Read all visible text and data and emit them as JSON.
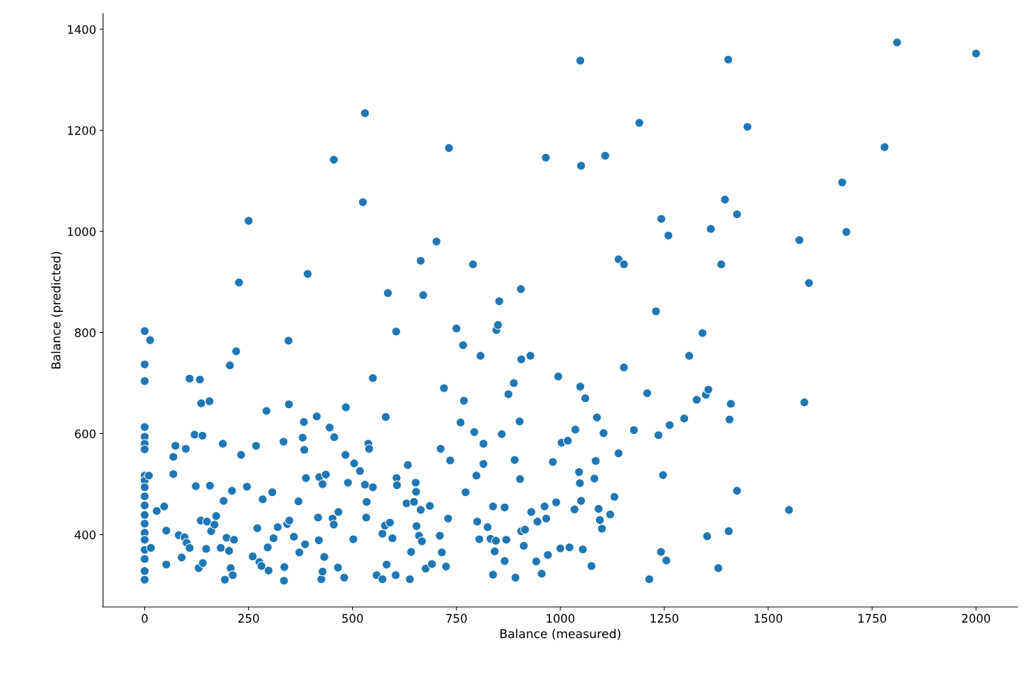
{
  "chart_data": {
    "type": "scatter",
    "xlabel": "Balance (measured)",
    "ylabel": "Balance (predicted)",
    "xlim": [
      -100,
      2100
    ],
    "ylim": [
      257,
      1431
    ],
    "xticks": [
      0,
      250,
      500,
      750,
      1000,
      1250,
      1500,
      1750,
      2000
    ],
    "yticks": [
      400,
      600,
      800,
      1000,
      1200,
      1400
    ],
    "grid": false,
    "legend": false,
    "marker": "circle",
    "series": [
      {
        "color": "#1f77b4",
        "x": [
          0,
          0,
          0,
          0,
          0,
          0,
          0,
          0,
          0,
          0,
          0,
          0,
          0,
          0,
          0,
          0,
          0,
          0,
          0,
          0,
          13,
          10,
          15,
          29,
          47,
          52,
          52,
          69,
          69,
          74,
          82,
          89,
          96,
          99,
          101,
          108,
          108,
          120,
          123,
          130,
          133,
          136,
          139,
          135,
          140,
          148,
          150,
          156,
          157,
          160,
          168,
          172,
          183,
          188,
          190,
          193,
          197,
          203,
          205,
          207,
          210,
          212,
          215,
          220,
          227,
          232,
          246,
          250,
          260,
          268,
          271,
          276,
          281,
          284,
          293,
          296,
          298,
          307,
          310,
          320,
          334,
          335,
          336,
          343,
          346,
          347,
          348,
          359,
          370,
          372,
          380,
          383,
          384,
          386,
          388,
          392,
          414,
          417,
          419,
          420,
          425,
          428,
          428,
          432,
          436,
          445,
          452,
          455,
          455,
          456,
          465,
          466,
          480,
          483,
          484,
          489,
          502,
          504,
          518,
          525,
          530,
          530,
          533,
          534,
          538,
          540,
          549,
          549,
          558,
          572,
          572,
          578,
          580,
          582,
          585,
          590,
          596,
          604,
          605,
          606,
          607,
          630,
          633,
          638,
          641,
          648,
          652,
          653,
          654,
          660,
          664,
          664,
          667,
          670,
          676,
          686,
          691,
          702,
          712,
          710,
          715,
          720,
          725,
          730,
          732,
          735,
          750,
          760,
          766,
          768,
          772,
          790,
          793,
          798,
          800,
          805,
          808,
          815,
          815,
          825,
          832,
          838,
          838,
          842,
          845,
          846,
          850,
          853,
          859,
          866,
          866,
          870,
          875,
          888,
          890,
          892,
          902,
          903,
          905,
          906,
          906,
          912,
          915,
          928,
          930,
          942,
          945,
          955,
          962,
          965,
          966,
          970,
          982,
          990,
          995,
          1000,
          1003,
          1018,
          1022,
          1034,
          1036,
          1045,
          1048,
          1048,
          1050,
          1047,
          1050,
          1054,
          1060,
          1075,
          1082,
          1085,
          1088,
          1092,
          1095,
          1100,
          1104,
          1108,
          1120,
          1130,
          1140,
          1140,
          1153,
          1153,
          1177,
          1190,
          1209,
          1214,
          1230,
          1236,
          1242,
          1243,
          1247,
          1255,
          1260,
          1263,
          1298,
          1310,
          1328,
          1342,
          1350,
          1356,
          1353,
          1362,
          1380,
          1387,
          1396,
          1404,
          1405,
          1407,
          1410,
          1425,
          1425,
          1450,
          1550,
          1575,
          1587,
          1598,
          1678,
          1688,
          1780,
          1810,
          2000
        ],
        "values": [
          803,
          737,
          704,
          613,
          594,
          580,
          569,
          517,
          507,
          494,
          476,
          458,
          439,
          422,
          404,
          390,
          370,
          352,
          328,
          311,
          785,
          517,
          374,
          447,
          456,
          408,
          341,
          554,
          520,
          576,
          399,
          355,
          395,
          570,
          384,
          374,
          709,
          598,
          496,
          334,
          707,
          660,
          596,
          428,
          344,
          372,
          426,
          664,
          497,
          407,
          420,
          437,
          374,
          580,
          467,
          311,
          394,
          368,
          735,
          334,
          487,
          320,
          390,
          763,
          899,
          558,
          495,
          1021,
          357,
          576,
          413,
          346,
          338,
          470,
          645,
          375,
          329,
          484,
          393,
          415,
          584,
          309,
          336,
          421,
          784,
          658,
          428,
          396,
          466,
          365,
          592,
          623,
          568,
          381,
          512,
          916,
          634,
          434,
          389,
          514,
          312,
          500,
          327,
          356,
          519,
          612,
          432,
          420,
          1142,
          593,
          335,
          445,
          315,
          558,
          652,
          503,
          391,
          541,
          526,
          1058,
          499,
          1234,
          434,
          465,
          580,
          570,
          710,
          494,
          320,
          312,
          402,
          418,
          633,
          341,
          878,
          424,
          393,
          320,
          802,
          512,
          498,
          462,
          538,
          312,
          366,
          465,
          503,
          485,
          417,
          398,
          942,
          449,
          387,
          874,
          333,
          457,
          342,
          980,
          570,
          398,
          365,
          690,
          337,
          432,
          1165,
          547,
          808,
          622,
          775,
          665,
          484,
          935,
          603,
          517,
          426,
          391,
          754,
          580,
          540,
          415,
          392,
          456,
          321,
          367,
          388,
          805,
          815,
          862,
          599,
          454,
          348,
          390,
          678,
          700,
          548,
          315,
          624,
          510,
          886,
          407,
          747,
          378,
          410,
          754,
          445,
          347,
          426,
          323,
          456,
          1146,
          432,
          360,
          544,
          464,
          713,
          373,
          582,
          586,
          375,
          450,
          608,
          524,
          693,
          1338,
          1130,
          502,
          467,
          371,
          670,
          338,
          511,
          546,
          632,
          451,
          429,
          412,
          601,
          1150,
          440,
          475,
          561,
          945,
          935,
          731,
          607,
          1215,
          680,
          312,
          842,
          597,
          366,
          1025,
          518,
          349,
          992,
          617,
          630,
          754,
          667,
          799,
          677,
          687,
          397,
          1005,
          334,
          935,
          1063,
          1340,
          407,
          628,
          659,
          1034,
          487,
          1207,
          449,
          983,
          662,
          898,
          1097,
          999,
          1167,
          1374,
          1352
        ]
      }
    ]
  }
}
